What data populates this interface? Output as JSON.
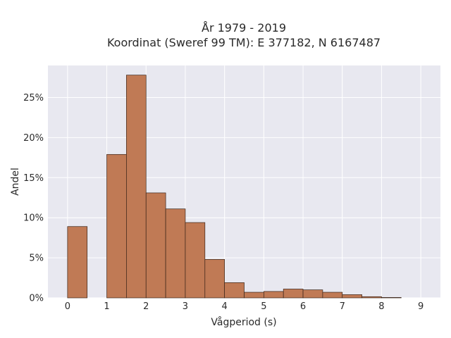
{
  "chart_data": {
    "type": "bar",
    "title_lines": [
      "År 1979 - 2019",
      "Koordinat (Sweref 99 TM): E 377182, N 6167487"
    ],
    "xlabel": "Vågperiod (s)",
    "ylabel": "Andel",
    "xlim": [
      -0.5,
      9.5
    ],
    "ylim": [
      0,
      0.29
    ],
    "x_ticks": [
      0,
      1,
      2,
      3,
      4,
      5,
      6,
      7,
      8,
      9
    ],
    "x_tick_labels": [
      "0",
      "1",
      "2",
      "3",
      "4",
      "5",
      "6",
      "7",
      "8",
      "9"
    ],
    "y_ticks": [
      0,
      0.05,
      0.1,
      0.15,
      0.2,
      0.25
    ],
    "y_tick_labels": [
      "0%",
      "5%",
      "10%",
      "15%",
      "20%",
      "25%"
    ],
    "bin_width": 0.5,
    "bins": [
      {
        "start": 0.0,
        "value": 0.089
      },
      {
        "start": 0.5,
        "value": 0.0
      },
      {
        "start": 1.0,
        "value": 0.179
      },
      {
        "start": 1.5,
        "value": 0.278
      },
      {
        "start": 2.0,
        "value": 0.131
      },
      {
        "start": 2.5,
        "value": 0.111
      },
      {
        "start": 3.0,
        "value": 0.094
      },
      {
        "start": 3.5,
        "value": 0.048
      },
      {
        "start": 4.0,
        "value": 0.019
      },
      {
        "start": 4.5,
        "value": 0.007
      },
      {
        "start": 5.0,
        "value": 0.008
      },
      {
        "start": 5.5,
        "value": 0.011
      },
      {
        "start": 6.0,
        "value": 0.01
      },
      {
        "start": 6.5,
        "value": 0.007
      },
      {
        "start": 7.0,
        "value": 0.004
      },
      {
        "start": 7.5,
        "value": 0.0015
      },
      {
        "start": 8.0,
        "value": 0.0005
      }
    ],
    "grid": true,
    "colors": {
      "bar_fill": "#c07a55",
      "bar_stroke": "#3a2418",
      "plot_background": "#e8e8f0",
      "grid": "#ffffff"
    }
  }
}
